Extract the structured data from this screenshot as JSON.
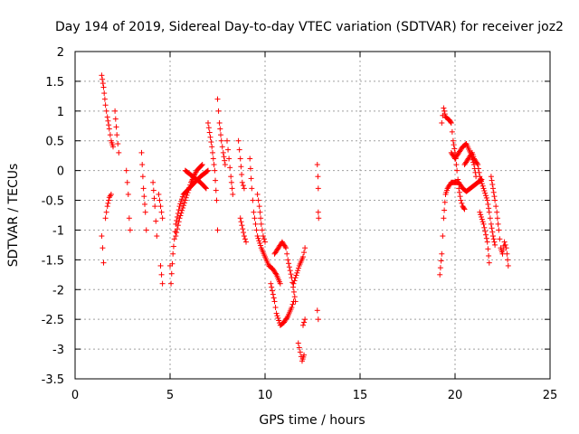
{
  "chart_data": {
    "type": "scatter",
    "title": "Day 194 of 2019, Sidereal Day-to-day VTEC variation (SDTVAR) for receiver joz2",
    "xlabel": "GPS time / hours",
    "ylabel": "SDTVAR / TECUs",
    "xlim": [
      0,
      25
    ],
    "ylim": [
      -3.5,
      2
    ],
    "xticks": [
      "0",
      "5",
      "10",
      "15",
      "20",
      "25"
    ],
    "yticks": [
      "-3.5",
      "-3",
      "-2.5",
      "-2",
      "-1.5",
      "-1",
      "-0.5",
      "0",
      "0.5",
      "1",
      "1.5",
      "2"
    ],
    "grid": true,
    "marker": "+",
    "color": "#ff0000",
    "series": [
      {
        "name": "SDTVAR",
        "tracks": [
          [
            [
              1.4,
              1.6
            ],
            [
              1.5,
              1.4
            ],
            [
              1.6,
              1.1
            ],
            [
              1.7,
              0.9
            ],
            [
              1.8,
              0.7
            ],
            [
              1.9,
              0.5
            ],
            [
              2.0,
              0.4
            ]
          ],
          [
            [
              1.4,
              -1.1
            ],
            [
              1.45,
              -1.3
            ],
            [
              1.5,
              -1.55
            ]
          ],
          [
            [
              1.6,
              -0.8
            ],
            [
              1.7,
              -0.6
            ],
            [
              1.8,
              -0.45
            ],
            [
              1.9,
              -0.4
            ]
          ],
          [
            [
              2.1,
              1.0
            ],
            [
              2.2,
              0.6
            ],
            [
              2.3,
              0.3
            ]
          ],
          [
            [
              2.7,
              0.0
            ],
            [
              2.8,
              -0.4
            ],
            [
              2.85,
              -0.8
            ],
            [
              2.9,
              -1.0
            ]
          ],
          [
            [
              3.5,
              0.3
            ],
            [
              3.6,
              -0.3
            ],
            [
              3.7,
              -0.7
            ],
            [
              3.75,
              -1.0
            ]
          ],
          [
            [
              4.1,
              -0.2
            ],
            [
              4.2,
              -0.6
            ],
            [
              4.3,
              -1.1
            ]
          ],
          [
            [
              4.4,
              -0.4
            ],
            [
              4.5,
              -0.6
            ],
            [
              4.6,
              -0.8
            ]
          ],
          [
            [
              4.5,
              -1.6
            ],
            [
              4.6,
              -1.9
            ]
          ],
          [
            [
              5.0,
              -1.6
            ],
            [
              5.05,
              -1.9
            ],
            [
              5.15,
              -1.4
            ],
            [
              5.3,
              -0.9
            ],
            [
              5.5,
              -0.6
            ],
            [
              5.7,
              -0.4
            ],
            [
              6.0,
              -0.3
            ],
            [
              6.3,
              -0.2
            ],
            [
              6.6,
              -0.1
            ],
            [
              7.0,
              0.0
            ]
          ],
          [
            [
              5.3,
              -1.1
            ],
            [
              5.5,
              -0.8
            ],
            [
              5.8,
              -0.5
            ],
            [
              6.1,
              -0.2
            ],
            [
              6.4,
              0.0
            ],
            [
              6.7,
              0.1
            ]
          ],
          [
            [
              5.8,
              0.0
            ],
            [
              6.2,
              -0.1
            ],
            [
              6.6,
              -0.2
            ],
            [
              6.9,
              -0.3
            ]
          ],
          [
            [
              7.0,
              0.8
            ],
            [
              7.2,
              0.4
            ],
            [
              7.35,
              0.0
            ],
            [
              7.45,
              -0.5
            ],
            [
              7.5,
              -1.0
            ]
          ],
          [
            [
              7.5,
              1.2
            ],
            [
              7.6,
              0.8
            ],
            [
              7.7,
              0.5
            ],
            [
              7.8,
              0.3
            ],
            [
              7.9,
              0.1
            ]
          ],
          [
            [
              8.0,
              0.5
            ],
            [
              8.1,
              0.2
            ],
            [
              8.2,
              -0.1
            ],
            [
              8.3,
              -0.4
            ]
          ],
          [
            [
              8.6,
              0.5
            ],
            [
              8.7,
              0.2
            ],
            [
              8.8,
              -0.2
            ],
            [
              8.9,
              -0.3
            ]
          ],
          [
            [
              8.7,
              -0.8
            ],
            [
              8.9,
              -1.1
            ],
            [
              9.0,
              -1.2
            ]
          ],
          [
            [
              9.2,
              0.2
            ],
            [
              9.3,
              -0.3
            ],
            [
              9.4,
              -0.7
            ],
            [
              9.5,
              -0.9
            ],
            [
              9.6,
              -1.1
            ],
            [
              9.8,
              -1.3
            ],
            [
              10.0,
              -1.45
            ],
            [
              10.2,
              -1.6
            ],
            [
              10.4,
              -1.65
            ],
            [
              10.6,
              -1.75
            ],
            [
              10.8,
              -1.9
            ]
          ],
          [
            [
              9.6,
              -0.4
            ],
            [
              9.7,
              -0.6
            ],
            [
              9.8,
              -0.9
            ],
            [
              9.9,
              -1.1
            ],
            [
              10.0,
              -1.2
            ]
          ],
          [
            [
              10.3,
              -1.9
            ],
            [
              10.5,
              -2.2
            ],
            [
              10.6,
              -2.4
            ],
            [
              10.8,
              -2.6
            ],
            [
              11.0,
              -2.55
            ],
            [
              11.2,
              -2.45
            ],
            [
              11.4,
              -2.3
            ],
            [
              11.5,
              -2.2
            ]
          ],
          [
            [
              10.5,
              -1.4
            ],
            [
              10.7,
              -1.3
            ],
            [
              10.9,
              -1.2
            ],
            [
              11.1,
              -1.3
            ],
            [
              11.2,
              -1.5
            ],
            [
              11.4,
              -1.8
            ],
            [
              11.6,
              -2.2
            ]
          ],
          [
            [
              11.5,
              -1.9
            ],
            [
              11.6,
              -1.8
            ],
            [
              11.8,
              -1.6
            ],
            [
              12.0,
              -1.45
            ],
            [
              12.1,
              -1.3
            ]
          ],
          [
            [
              11.75,
              -2.9
            ],
            [
              11.85,
              -3.05
            ],
            [
              11.95,
              -3.2
            ],
            [
              12.05,
              -3.1
            ]
          ],
          [
            [
              12.0,
              -2.6
            ],
            [
              12.1,
              -2.5
            ]
          ],
          [
            [
              12.75,
              0.1
            ],
            [
              12.78,
              -0.1
            ],
            [
              12.8,
              -0.3
            ]
          ],
          [
            [
              12.8,
              -0.7
            ],
            [
              12.82,
              -0.8
            ]
          ],
          [
            [
              12.75,
              -2.35
            ],
            [
              12.8,
              -2.5
            ]
          ],
          [
            [
              19.2,
              -1.75
            ],
            [
              19.3,
              -1.4
            ],
            [
              19.4,
              -0.8
            ],
            [
              19.5,
              -0.4
            ],
            [
              19.6,
              -0.3
            ],
            [
              19.8,
              -0.2
            ],
            [
              20.0,
              -0.2
            ],
            [
              20.2,
              -0.2
            ],
            [
              20.4,
              -0.3
            ],
            [
              20.6,
              -0.35
            ],
            [
              20.8,
              -0.3
            ],
            [
              21.0,
              -0.25
            ],
            [
              21.2,
              -0.2
            ],
            [
              21.4,
              -0.15
            ]
          ],
          [
            [
              19.3,
              0.8
            ],
            [
              19.4,
              1.05
            ],
            [
              19.5,
              0.9
            ],
            [
              19.7,
              0.85
            ],
            [
              19.8,
              0.8
            ],
            [
              19.9,
              0.5
            ],
            [
              20.0,
              0.3
            ],
            [
              20.1,
              0.0
            ],
            [
              20.2,
              -0.3
            ],
            [
              20.3,
              -0.5
            ],
            [
              20.4,
              -0.6
            ],
            [
              20.5,
              -0.65
            ]
          ],
          [
            [
              19.8,
              0.3
            ],
            [
              20.0,
              0.2
            ],
            [
              20.2,
              0.3
            ],
            [
              20.4,
              0.4
            ],
            [
              20.6,
              0.45
            ],
            [
              20.8,
              0.3
            ],
            [
              21.0,
              0.1
            ],
            [
              21.1,
              -0.1
            ]
          ],
          [
            [
              20.5,
              0.1
            ],
            [
              20.7,
              0.2
            ],
            [
              20.9,
              0.3
            ],
            [
              21.0,
              0.2
            ],
            [
              21.2,
              0.1
            ],
            [
              21.3,
              -0.1
            ],
            [
              21.5,
              -0.3
            ],
            [
              21.7,
              -0.5
            ],
            [
              21.8,
              -0.7
            ],
            [
              21.9,
              -0.9
            ],
            [
              22.0,
              -1.1
            ],
            [
              22.1,
              -1.25
            ]
          ],
          [
            [
              21.3,
              -0.7
            ],
            [
              21.5,
              -0.9
            ],
            [
              21.7,
              -1.2
            ],
            [
              21.8,
              -1.55
            ]
          ],
          [
            [
              21.9,
              -0.1
            ],
            [
              22.0,
              -0.3
            ],
            [
              22.1,
              -0.5
            ],
            [
              22.2,
              -0.7
            ],
            [
              22.3,
              -1.0
            ],
            [
              22.4,
              -1.3
            ],
            [
              22.5,
              -1.4
            ],
            [
              22.6,
              -1.2
            ],
            [
              22.7,
              -1.3
            ],
            [
              22.8,
              -1.6
            ]
          ]
        ]
      }
    ]
  }
}
